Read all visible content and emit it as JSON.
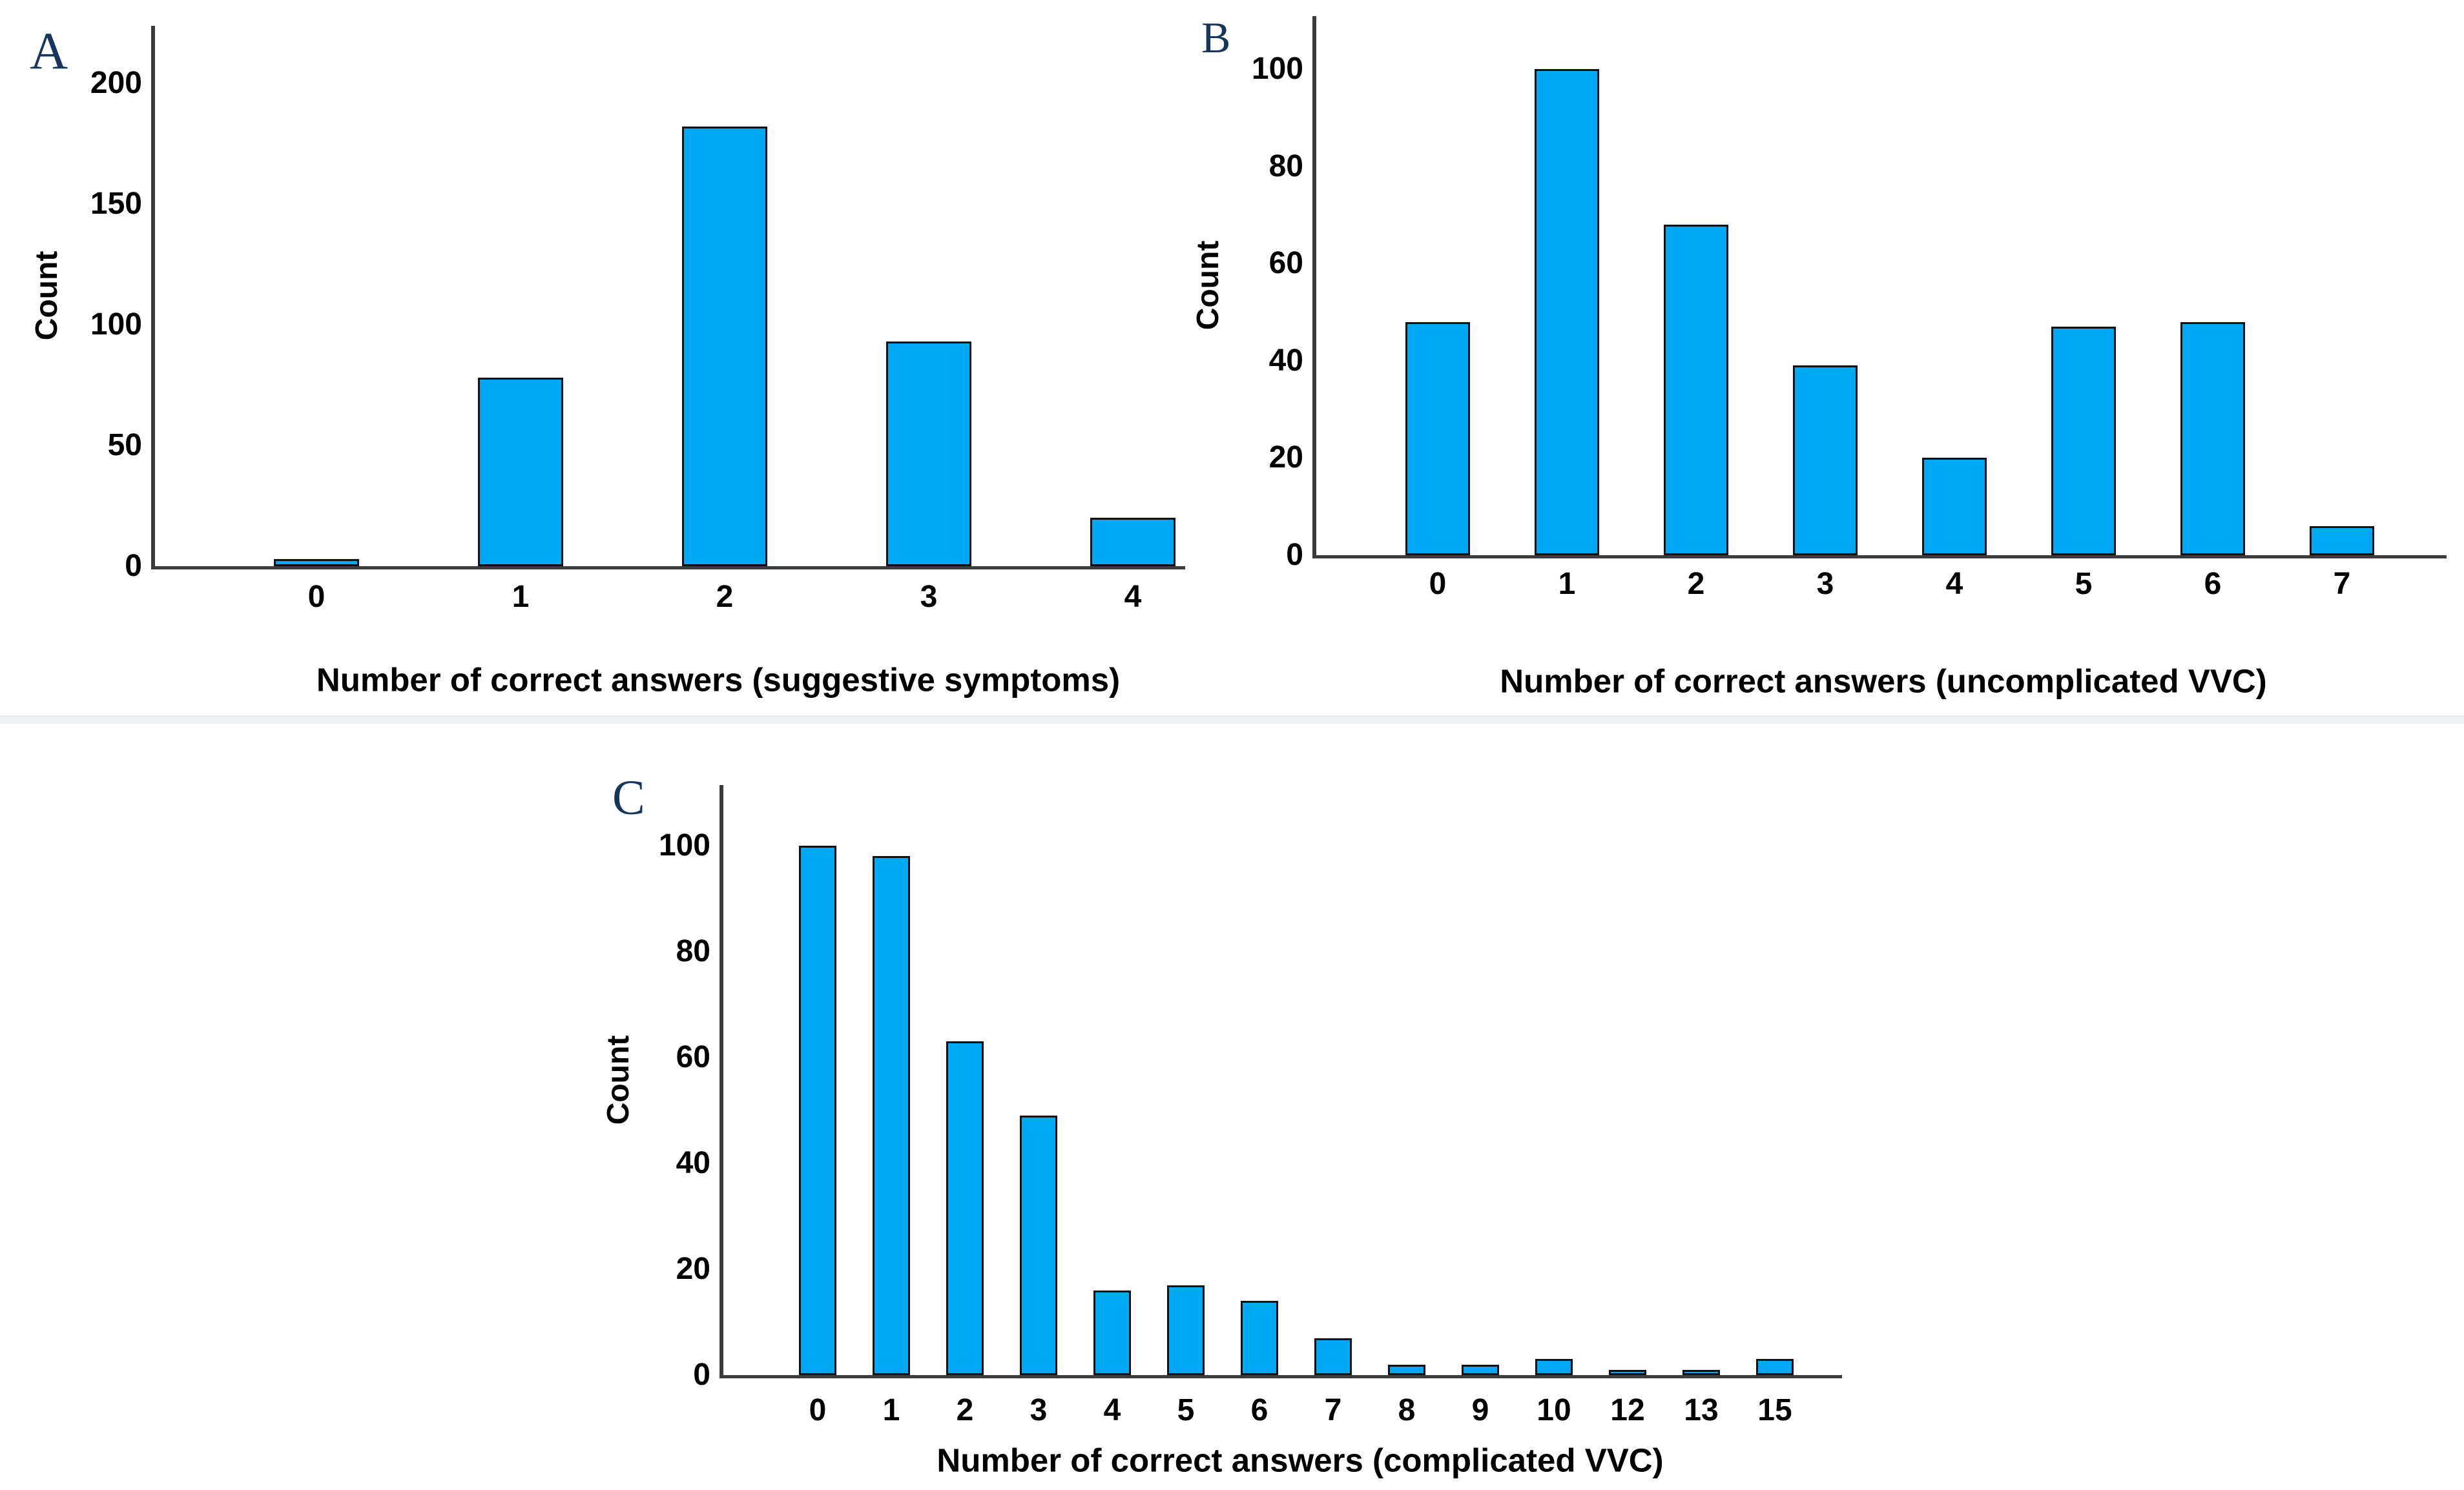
{
  "figure": {
    "background_color": "#ffffff",
    "panel_letter_color": "#17365d",
    "axis_color": "#3c3c3c",
    "bar_fill_color": "#00a9f4",
    "bar_border_color": "#101010",
    "text_color": "#000000"
  },
  "chart_data": [
    {
      "type": "bar",
      "panel_label": "A",
      "title": "",
      "ylabel": "Count",
      "xlabel": "Number of correct answers (suggestive symptoms)",
      "categories": [
        "0",
        "1",
        "2",
        "3",
        "4"
      ],
      "values": [
        3,
        78,
        182,
        93,
        20
      ],
      "yticks": [
        0,
        50,
        100,
        150,
        200
      ],
      "ylim": [
        0,
        224
      ],
      "grid": false,
      "legend": "none"
    },
    {
      "type": "bar",
      "panel_label": "B",
      "title": "",
      "ylabel": "Count",
      "xlabel": "Number of correct answers (uncomplicated VVC)",
      "categories": [
        "0",
        "1",
        "2",
        "3",
        "4",
        "5",
        "6",
        "7"
      ],
      "values": [
        48,
        100,
        68,
        39,
        20,
        47,
        48,
        6
      ],
      "yticks": [
        0,
        20,
        40,
        60,
        80,
        100
      ],
      "ylim": [
        0,
        111
      ],
      "grid": false,
      "legend": "none"
    },
    {
      "type": "bar",
      "panel_label": "C",
      "title": "",
      "ylabel": "Count",
      "xlabel": "Number of correct answers (complicated VVC)",
      "categories": [
        "0",
        "1",
        "2",
        "3",
        "4",
        "5",
        "6",
        "7",
        "8",
        "9",
        "10",
        "12",
        "13",
        "15"
      ],
      "values": [
        100,
        98,
        63,
        49,
        16,
        17,
        14,
        7,
        2,
        2,
        3,
        1,
        1,
        3
      ],
      "yticks": [
        0,
        20,
        40,
        60,
        80,
        100
      ],
      "ylim": [
        0,
        111
      ],
      "grid": false,
      "legend": "none"
    }
  ]
}
